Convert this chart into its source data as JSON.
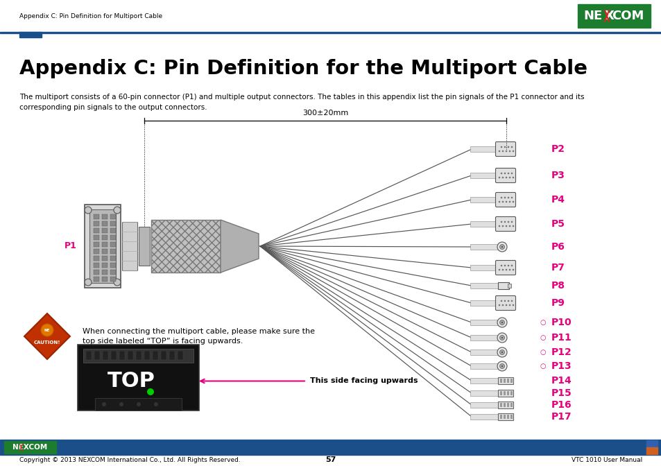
{
  "page_title": "Appendix C: Pin Definition for the Multiport Cable",
  "header_text": "Appendix C: Pin Definition for Multiport Cable",
  "body_text": "The multiport consists of a 60-pin connector (P1) and multiple output connectors. The tables in this appendix list the pin signals of the P1 connector and its\ncorresponding pin signals to the output connectors.",
  "dimension_label": "300±20mm",
  "caution_text": "When connecting the multiport cable, please make sure the\ntop side labeled “TOP” is facing upwards.",
  "side_label": "This side facing upwards",
  "page_number": "57",
  "footer_left": "Copyright © 2013 NEXCOM International Co., Ltd. All Rights Reserved.",
  "footer_right": "VTC 1010 User Manual",
  "background_color": "#ffffff",
  "header_line_color": "#1a4f8a",
  "pink_color": "#e6007e",
  "p_labels": [
    "P2",
    "P3",
    "P4",
    "P5",
    "P6",
    "P7",
    "P8",
    "P9",
    "P10",
    "P11",
    "P12",
    "P13",
    "P14",
    "P15",
    "P16",
    "P17"
  ],
  "p1_label": "P1",
  "footer_bar_color": "#1a4f8a"
}
